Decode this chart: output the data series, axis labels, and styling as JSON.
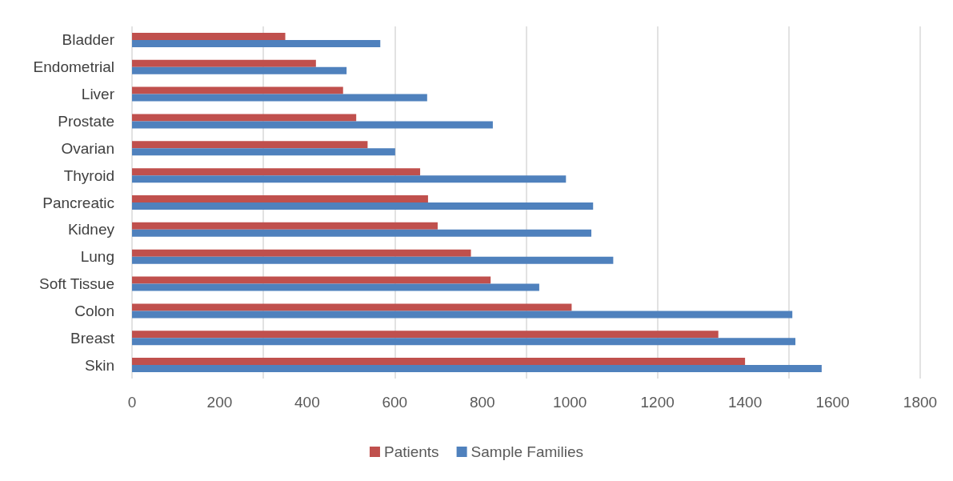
{
  "chart_data": {
    "type": "bar",
    "orientation": "horizontal",
    "categories": [
      "Bladder",
      "Endometrial",
      "Liver",
      "Prostate",
      "Ovarian",
      "Thyroid",
      "Pancreatic",
      "Kidney",
      "Lung",
      "Soft Tissue",
      "Colon",
      "Breast",
      "Skin"
    ],
    "series": [
      {
        "name": "Patients",
        "color": "#c0504d",
        "values": [
          350,
          420,
          482,
          512,
          538,
          658,
          676,
          698,
          774,
          819,
          1004,
          1339,
          1400
        ]
      },
      {
        "name": "Sample Families",
        "color": "#4f81bd",
        "values": [
          567,
          490,
          674,
          824,
          601,
          991,
          1053,
          1049,
          1099,
          930,
          1508,
          1515,
          1575
        ]
      }
    ],
    "xlim": [
      0,
      1800
    ],
    "xticks": [
      0,
      200,
      400,
      600,
      800,
      1000,
      1200,
      1400,
      1600,
      1800
    ],
    "grid": "x",
    "legend": "bottom"
  }
}
